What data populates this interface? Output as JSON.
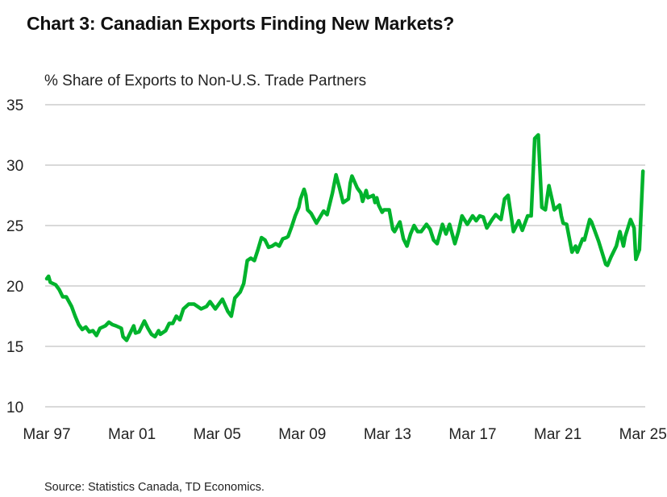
{
  "title": "Chart 3: Canadian Exports Finding New Markets?",
  "source": "Source: Statistics Canada, TD Economics.",
  "chart_data": {
    "type": "line",
    "title": "Chart 3: Canadian Exports Finding New Markets?",
    "ylabel": "% Share of Exports to Non-U.S. Trade Partners",
    "xlabel": "",
    "ylim": [
      10,
      35
    ],
    "yticks": [
      "10",
      "15",
      "20",
      "25",
      "30",
      "35"
    ],
    "xticks": [
      {
        "label": "Mar 97",
        "date": "1997-03"
      },
      {
        "label": "Mar 01",
        "date": "2001-03"
      },
      {
        "label": "Mar 05",
        "date": "2005-03"
      },
      {
        "label": "Mar 09",
        "date": "2009-03"
      },
      {
        "label": "Mar 13",
        "date": "2013-03"
      },
      {
        "label": "Mar 17",
        "date": "2017-03"
      },
      {
        "label": "Mar 21",
        "date": "2021-03"
      },
      {
        "label": "Mar 25",
        "date": "2025-03"
      }
    ],
    "grid": "horizontal",
    "color": "#00b32c",
    "series": [
      {
        "x": [
          "1997-03",
          "1997-04",
          "1997-05",
          "1997-08",
          "1997-10",
          "1997-12",
          "1998-02",
          "1998-05",
          "1998-07",
          "1998-09",
          "1998-11",
          "1999-01",
          "1999-03",
          "1999-05",
          "1999-07",
          "1999-09",
          "1999-12",
          "2000-02",
          "2000-04",
          "2000-06",
          "2000-09",
          "2000-10",
          "2000-12",
          "2001-04",
          "2001-05",
          "2001-07",
          "2001-10",
          "2001-12",
          "2002-02",
          "2002-04",
          "2002-06",
          "2002-07",
          "2002-10",
          "2002-12",
          "2003-02",
          "2003-04",
          "2003-06",
          "2003-08",
          "2003-11",
          "2004-02",
          "2004-04",
          "2004-06",
          "2004-09",
          "2004-11",
          "2004-12",
          "2005-02",
          "2005-05",
          "2005-06",
          "2005-09",
          "2005-11",
          "2006-01",
          "2006-04",
          "2006-06",
          "2006-08",
          "2006-10",
          "2006-12",
          "2007-02",
          "2007-04",
          "2007-06",
          "2007-08",
          "2007-10",
          "2007-12",
          "2008-02",
          "2008-04",
          "2008-06",
          "2008-07",
          "2008-09",
          "2008-11",
          "2009-01",
          "2009-02",
          "2009-04",
          "2009-05",
          "2009-06",
          "2009-08",
          "2009-11",
          "2010-01",
          "2010-03",
          "2010-05",
          "2010-06",
          "2010-08",
          "2010-10",
          "2010-12",
          "2011-02",
          "2011-05",
          "2011-06",
          "2011-07",
          "2011-10",
          "2011-12",
          "2012-01",
          "2012-03",
          "2012-04",
          "2012-07",
          "2012-08",
          "2012-09",
          "2012-10",
          "2012-12",
          "2013-01",
          "2013-04",
          "2013-06",
          "2013-07",
          "2013-10",
          "2013-12",
          "2014-02",
          "2014-04",
          "2014-06",
          "2014-08",
          "2014-10",
          "2015-01",
          "2015-03",
          "2015-05",
          "2015-07",
          "2015-10",
          "2015-12",
          "2016-02",
          "2016-05",
          "2016-07",
          "2016-09",
          "2016-12",
          "2017-03",
          "2017-05",
          "2017-07",
          "2017-09",
          "2017-11",
          "2018-02",
          "2018-04",
          "2018-07",
          "2018-09",
          "2018-11",
          "2019-02",
          "2019-05",
          "2019-07",
          "2019-10",
          "2019-12",
          "2020-02",
          "2020-04",
          "2020-06",
          "2020-08",
          "2020-10",
          "2020-12",
          "2021-01",
          "2021-04",
          "2021-05",
          "2021-06",
          "2021-08",
          "2021-11",
          "2022-01",
          "2022-02",
          "2022-05",
          "2022-06",
          "2022-09",
          "2022-10",
          "2022-12",
          "2023-02",
          "2023-06",
          "2023-07",
          "2023-09",
          "2023-12",
          "2024-02",
          "2024-04",
          "2024-05",
          "2024-08",
          "2024-10",
          "2024-11",
          "2025-01",
          "2025-03"
        ],
        "y": [
          20.6,
          20.8,
          20.3,
          20.1,
          19.7,
          19.1,
          19.1,
          18.3,
          17.5,
          16.8,
          16.4,
          16.6,
          16.2,
          16.3,
          15.9,
          16.5,
          16.7,
          17.0,
          16.8,
          16.7,
          16.5,
          15.8,
          15.5,
          16.7,
          16.1,
          16.2,
          17.1,
          16.5,
          16.0,
          15.8,
          16.3,
          16.0,
          16.3,
          16.9,
          16.9,
          17.5,
          17.2,
          18.1,
          18.5,
          18.5,
          18.3,
          18.1,
          18.3,
          18.7,
          18.5,
          18.1,
          18.7,
          18.9,
          17.9,
          17.5,
          19.0,
          19.5,
          20.2,
          22.1,
          22.3,
          22.1,
          23.0,
          24.0,
          23.8,
          23.2,
          23.3,
          23.5,
          23.3,
          23.9,
          24.0,
          24.1,
          24.9,
          25.8,
          26.5,
          27.2,
          28.0,
          27.5,
          26.3,
          26.0,
          25.2,
          25.7,
          26.2,
          25.9,
          26.5,
          27.7,
          29.2,
          28.1,
          26.9,
          27.2,
          28.5,
          29.1,
          28.1,
          27.7,
          27.0,
          27.9,
          27.3,
          27.5,
          26.9,
          27.3,
          26.7,
          26.1,
          26.3,
          26.3,
          24.7,
          24.5,
          25.3,
          23.9,
          23.3,
          24.3,
          25.0,
          24.5,
          24.5,
          25.1,
          24.7,
          23.8,
          23.5,
          25.1,
          24.3,
          25.1,
          23.5,
          24.5,
          25.8,
          25.1,
          25.8,
          25.4,
          25.8,
          25.7,
          24.8,
          25.5,
          25.9,
          25.5,
          27.2,
          27.5,
          24.5,
          25.4,
          24.6,
          25.8,
          25.8,
          32.2,
          32.5,
          26.5,
          26.3,
          28.3,
          27.0,
          26.3,
          26.7,
          25.8,
          25.2,
          25.1,
          22.8,
          23.3,
          22.8,
          23.9,
          23.8,
          25.5,
          25.3,
          24.5,
          23.7,
          21.8,
          21.7,
          22.4,
          23.3,
          24.5,
          23.3,
          24.1,
          25.5,
          24.8,
          22.2,
          23.0,
          29.5
        ]
      }
    ]
  }
}
